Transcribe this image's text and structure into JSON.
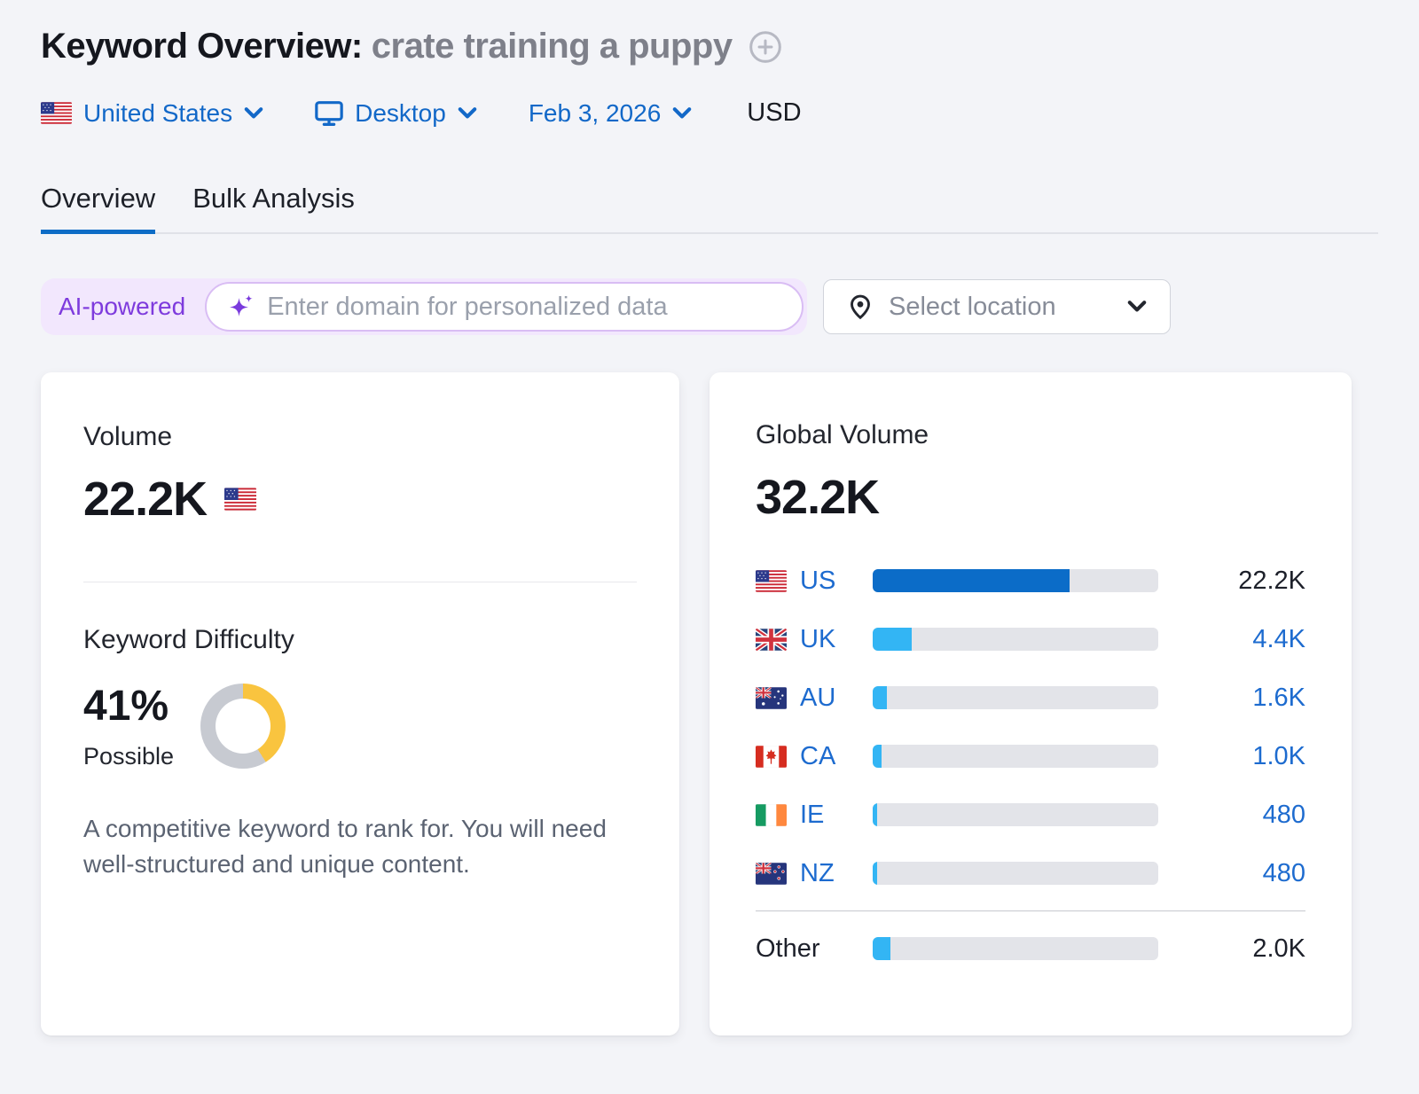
{
  "header": {
    "title": "Keyword Overview:",
    "keyword": "crate training a puppy",
    "filters": {
      "country": "United States",
      "device": "Desktop",
      "date": "Feb 3, 2026",
      "currency": "USD"
    }
  },
  "tabs": [
    {
      "label": "Overview",
      "active": true
    },
    {
      "label": "Bulk Analysis",
      "active": false
    }
  ],
  "ai_bar": {
    "badge": "AI-powered",
    "placeholder": "Enter domain for personalized data",
    "input_value": "",
    "location_button": "Select location"
  },
  "volume_card": {
    "title": "Volume",
    "value": "22.2K",
    "kd": {
      "title": "Keyword Difficulty",
      "percent": "41%",
      "percent_value": 41,
      "label": "Possible",
      "description": "A competitive keyword to rank for. You will need well-structured and unique content."
    }
  },
  "global_card": {
    "title": "Global Volume",
    "value": "32.2K",
    "rows": [
      {
        "code": "US",
        "flag": "flag-us",
        "value": "22.2K",
        "share_pct": 68.9,
        "fill": "primary",
        "code_link": true,
        "value_link": false
      },
      {
        "code": "UK",
        "flag": "flag-uk",
        "value": "4.4K",
        "share_pct": 13.7,
        "fill": "sky",
        "code_link": true,
        "value_link": true
      },
      {
        "code": "AU",
        "flag": "flag-au",
        "value": "1.6K",
        "share_pct": 5.0,
        "fill": "sky",
        "code_link": true,
        "value_link": true
      },
      {
        "code": "CA",
        "flag": "flag-ca",
        "value": "1.0K",
        "share_pct": 3.1,
        "fill": "sky",
        "code_link": true,
        "value_link": true
      },
      {
        "code": "IE",
        "flag": "flag-ie",
        "value": "480",
        "share_pct": 1.5,
        "fill": "sky",
        "code_link": true,
        "value_link": true
      },
      {
        "code": "NZ",
        "flag": "flag-nz",
        "value": "480",
        "share_pct": 1.5,
        "fill": "sky",
        "code_link": true,
        "value_link": true
      },
      {
        "code": "Other",
        "flag": null,
        "value": "2.0K",
        "share_pct": 6.2,
        "fill": "sky",
        "code_link": false,
        "value_link": false,
        "divider_before": true
      }
    ]
  },
  "colors": {
    "link_blue": "#1d6bcf",
    "bar_primary": "#0b6cc8",
    "bar_sky": "#33b5f4",
    "bar_track": "#e3e4e9",
    "kd_yellow": "#f9c43f",
    "kd_gray": "#c7cad1",
    "ai_purple": "#7e3bdd",
    "tab_accent": "#0d6cc6"
  }
}
